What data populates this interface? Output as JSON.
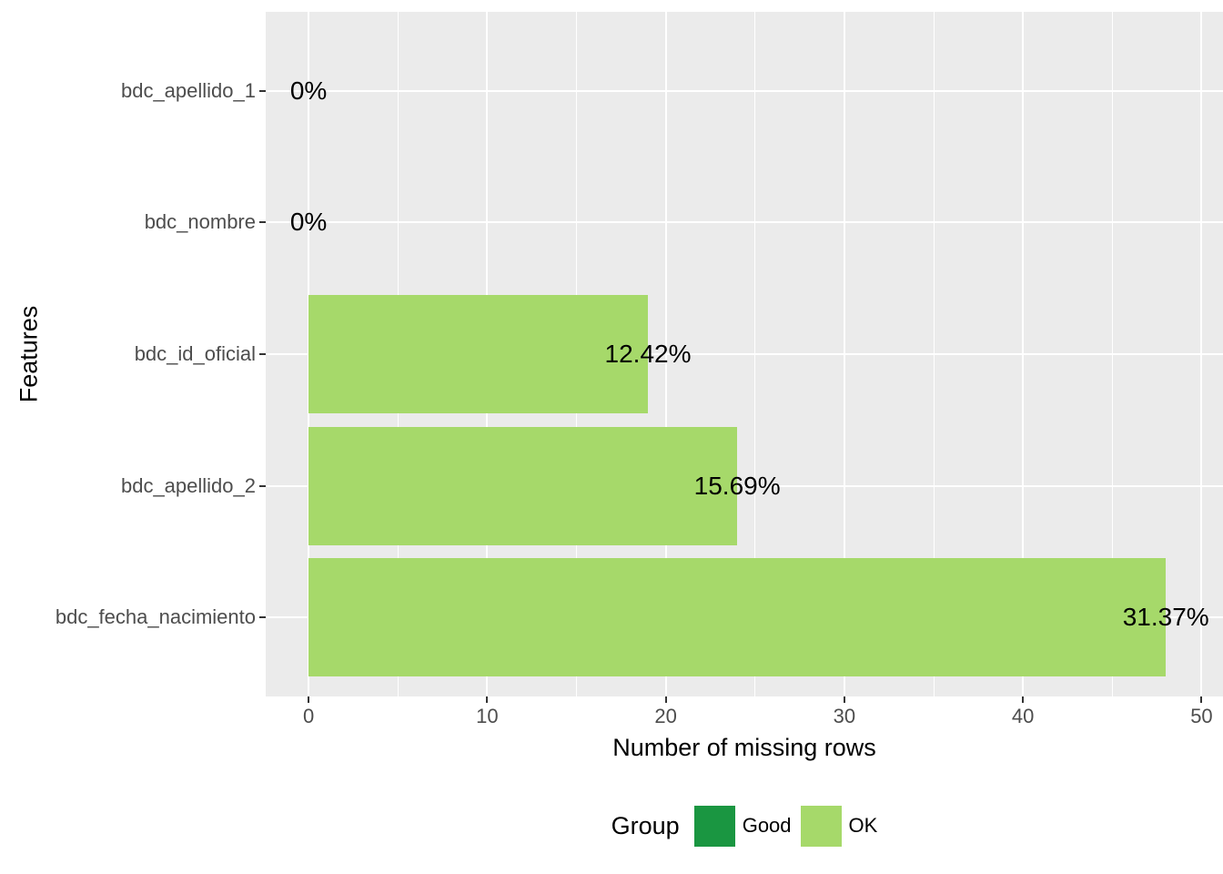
{
  "chart_data": {
    "type": "bar",
    "orientation": "horizontal",
    "title": "",
    "xlabel": "Number of missing rows",
    "ylabel": "Features",
    "categories": [
      "bdc_apellido_1",
      "bdc_nombre",
      "bdc_id_oficial",
      "bdc_apellido_2",
      "bdc_fecha_nacimiento"
    ],
    "values": [
      0,
      0,
      19,
      24,
      48
    ],
    "value_labels": [
      "0%",
      "0%",
      "12.42%",
      "15.69%",
      "31.37%"
    ],
    "groups": [
      "Good",
      "Good",
      "OK",
      "OK",
      "OK"
    ],
    "x_major_ticks": [
      0,
      10,
      20,
      30,
      40,
      50
    ],
    "x_major_tick_labels": [
      "0",
      "10",
      "20",
      "30",
      "40",
      "50"
    ],
    "x_minor_ticks": [
      5,
      15,
      25,
      35,
      45
    ],
    "xlim": [
      -2.4,
      51.2
    ],
    "grid": true,
    "legend": {
      "title": "Group",
      "position": "bottom",
      "entries": [
        {
          "label": "Good",
          "color": "#1A9641"
        },
        {
          "label": "OK",
          "color": "#A6D96A"
        }
      ]
    },
    "colors": {
      "panel_bg": "#EBEBEB",
      "grid": "#FFFFFF",
      "axis_text": "#4D4D4D",
      "tick_mark": "#333333",
      "label_text": "#000000"
    }
  }
}
